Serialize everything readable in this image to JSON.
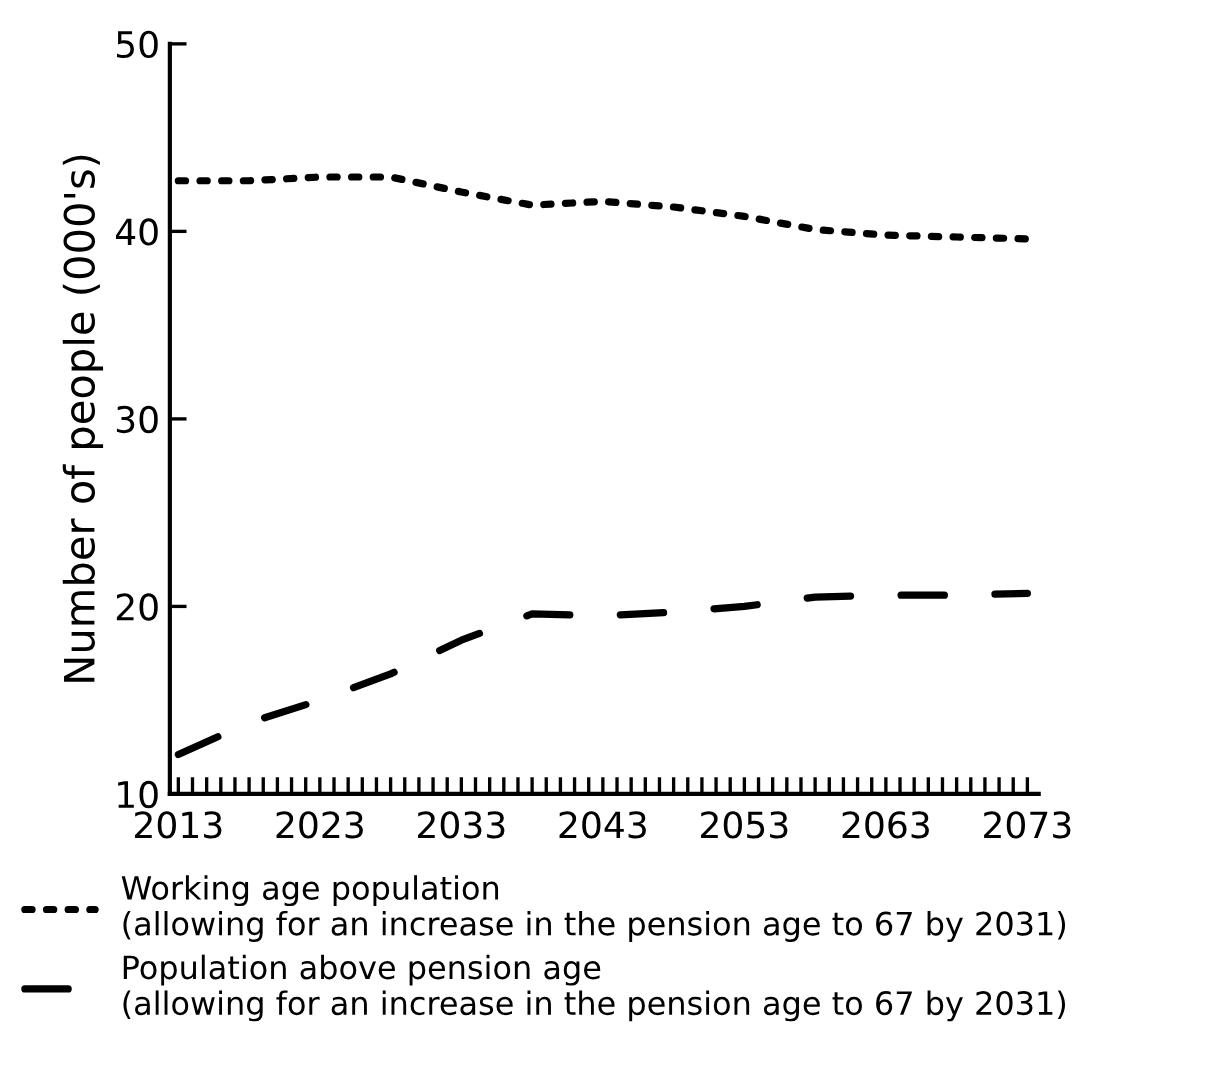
{
  "chart_data": {
    "type": "line",
    "ylabel": "Number of people (000's)",
    "xlim": [
      2012.4,
      2073.8
    ],
    "ylim": [
      10,
      50
    ],
    "xticks": [
      2013,
      2023,
      2033,
      2043,
      2053,
      2063,
      2073
    ],
    "yticks": [
      10,
      20,
      30,
      40,
      50
    ],
    "grid": false,
    "legend": "bottom",
    "marker": "none",
    "series": [
      {
        "name": "Working age population\n(allowing for an increase in the pension age to 67 by 2031)",
        "color": "#000000",
        "line_style": "dotted",
        "x": [
          2013,
          2018,
          2023,
          2028,
          2033,
          2038,
          2043,
          2048,
          2053,
          2058,
          2063,
          2068,
          2073
        ],
        "values": [
          42.7,
          42.7,
          42.9,
          42.9,
          42.1,
          41.4,
          41.6,
          41.3,
          40.8,
          40.1,
          39.8,
          39.7,
          39.6
        ]
      },
      {
        "name": "Population above pension age\n(allowing for an increase in the pension age to 67 by 2031)",
        "color": "#000000",
        "line_style": "dashed",
        "x": [
          2013,
          2018,
          2023,
          2028,
          2033,
          2038,
          2043,
          2048,
          2053,
          2058,
          2063,
          2068,
          2073
        ],
        "values": [
          12.1,
          13.8,
          15.0,
          16.4,
          18.2,
          19.6,
          19.5,
          19.7,
          20.0,
          20.5,
          20.6,
          20.6,
          20.7
        ]
      }
    ]
  }
}
